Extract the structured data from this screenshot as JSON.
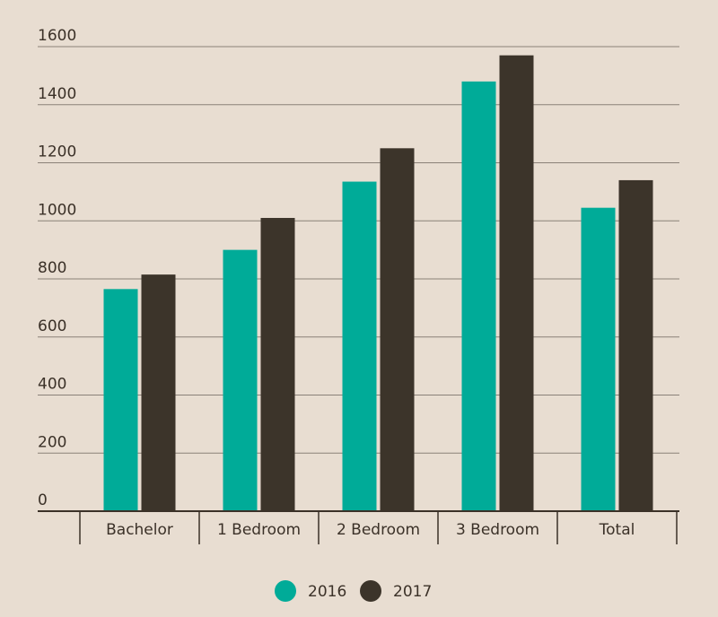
{
  "chart_data": {
    "type": "bar",
    "title": "",
    "xlabel": "",
    "ylabel": "",
    "categories": [
      "Bachelor",
      "1 Bedroom",
      "2 Bedroom",
      "3 Bedroom",
      "Total"
    ],
    "series": [
      {
        "name": "2016",
        "color": "#00ab98",
        "values": [
          765,
          900,
          1135,
          1480,
          1045
        ]
      },
      {
        "name": "2017",
        "color": "#3c342a",
        "values": [
          815,
          1010,
          1250,
          1570,
          1140
        ]
      }
    ],
    "ylim": [
      0,
      1600
    ],
    "yticks": [
      "0",
      "200",
      "400",
      "600",
      "800",
      "1000",
      "1200",
      "1400",
      "1600"
    ],
    "grid": true,
    "legend_position": "bottom-center"
  }
}
